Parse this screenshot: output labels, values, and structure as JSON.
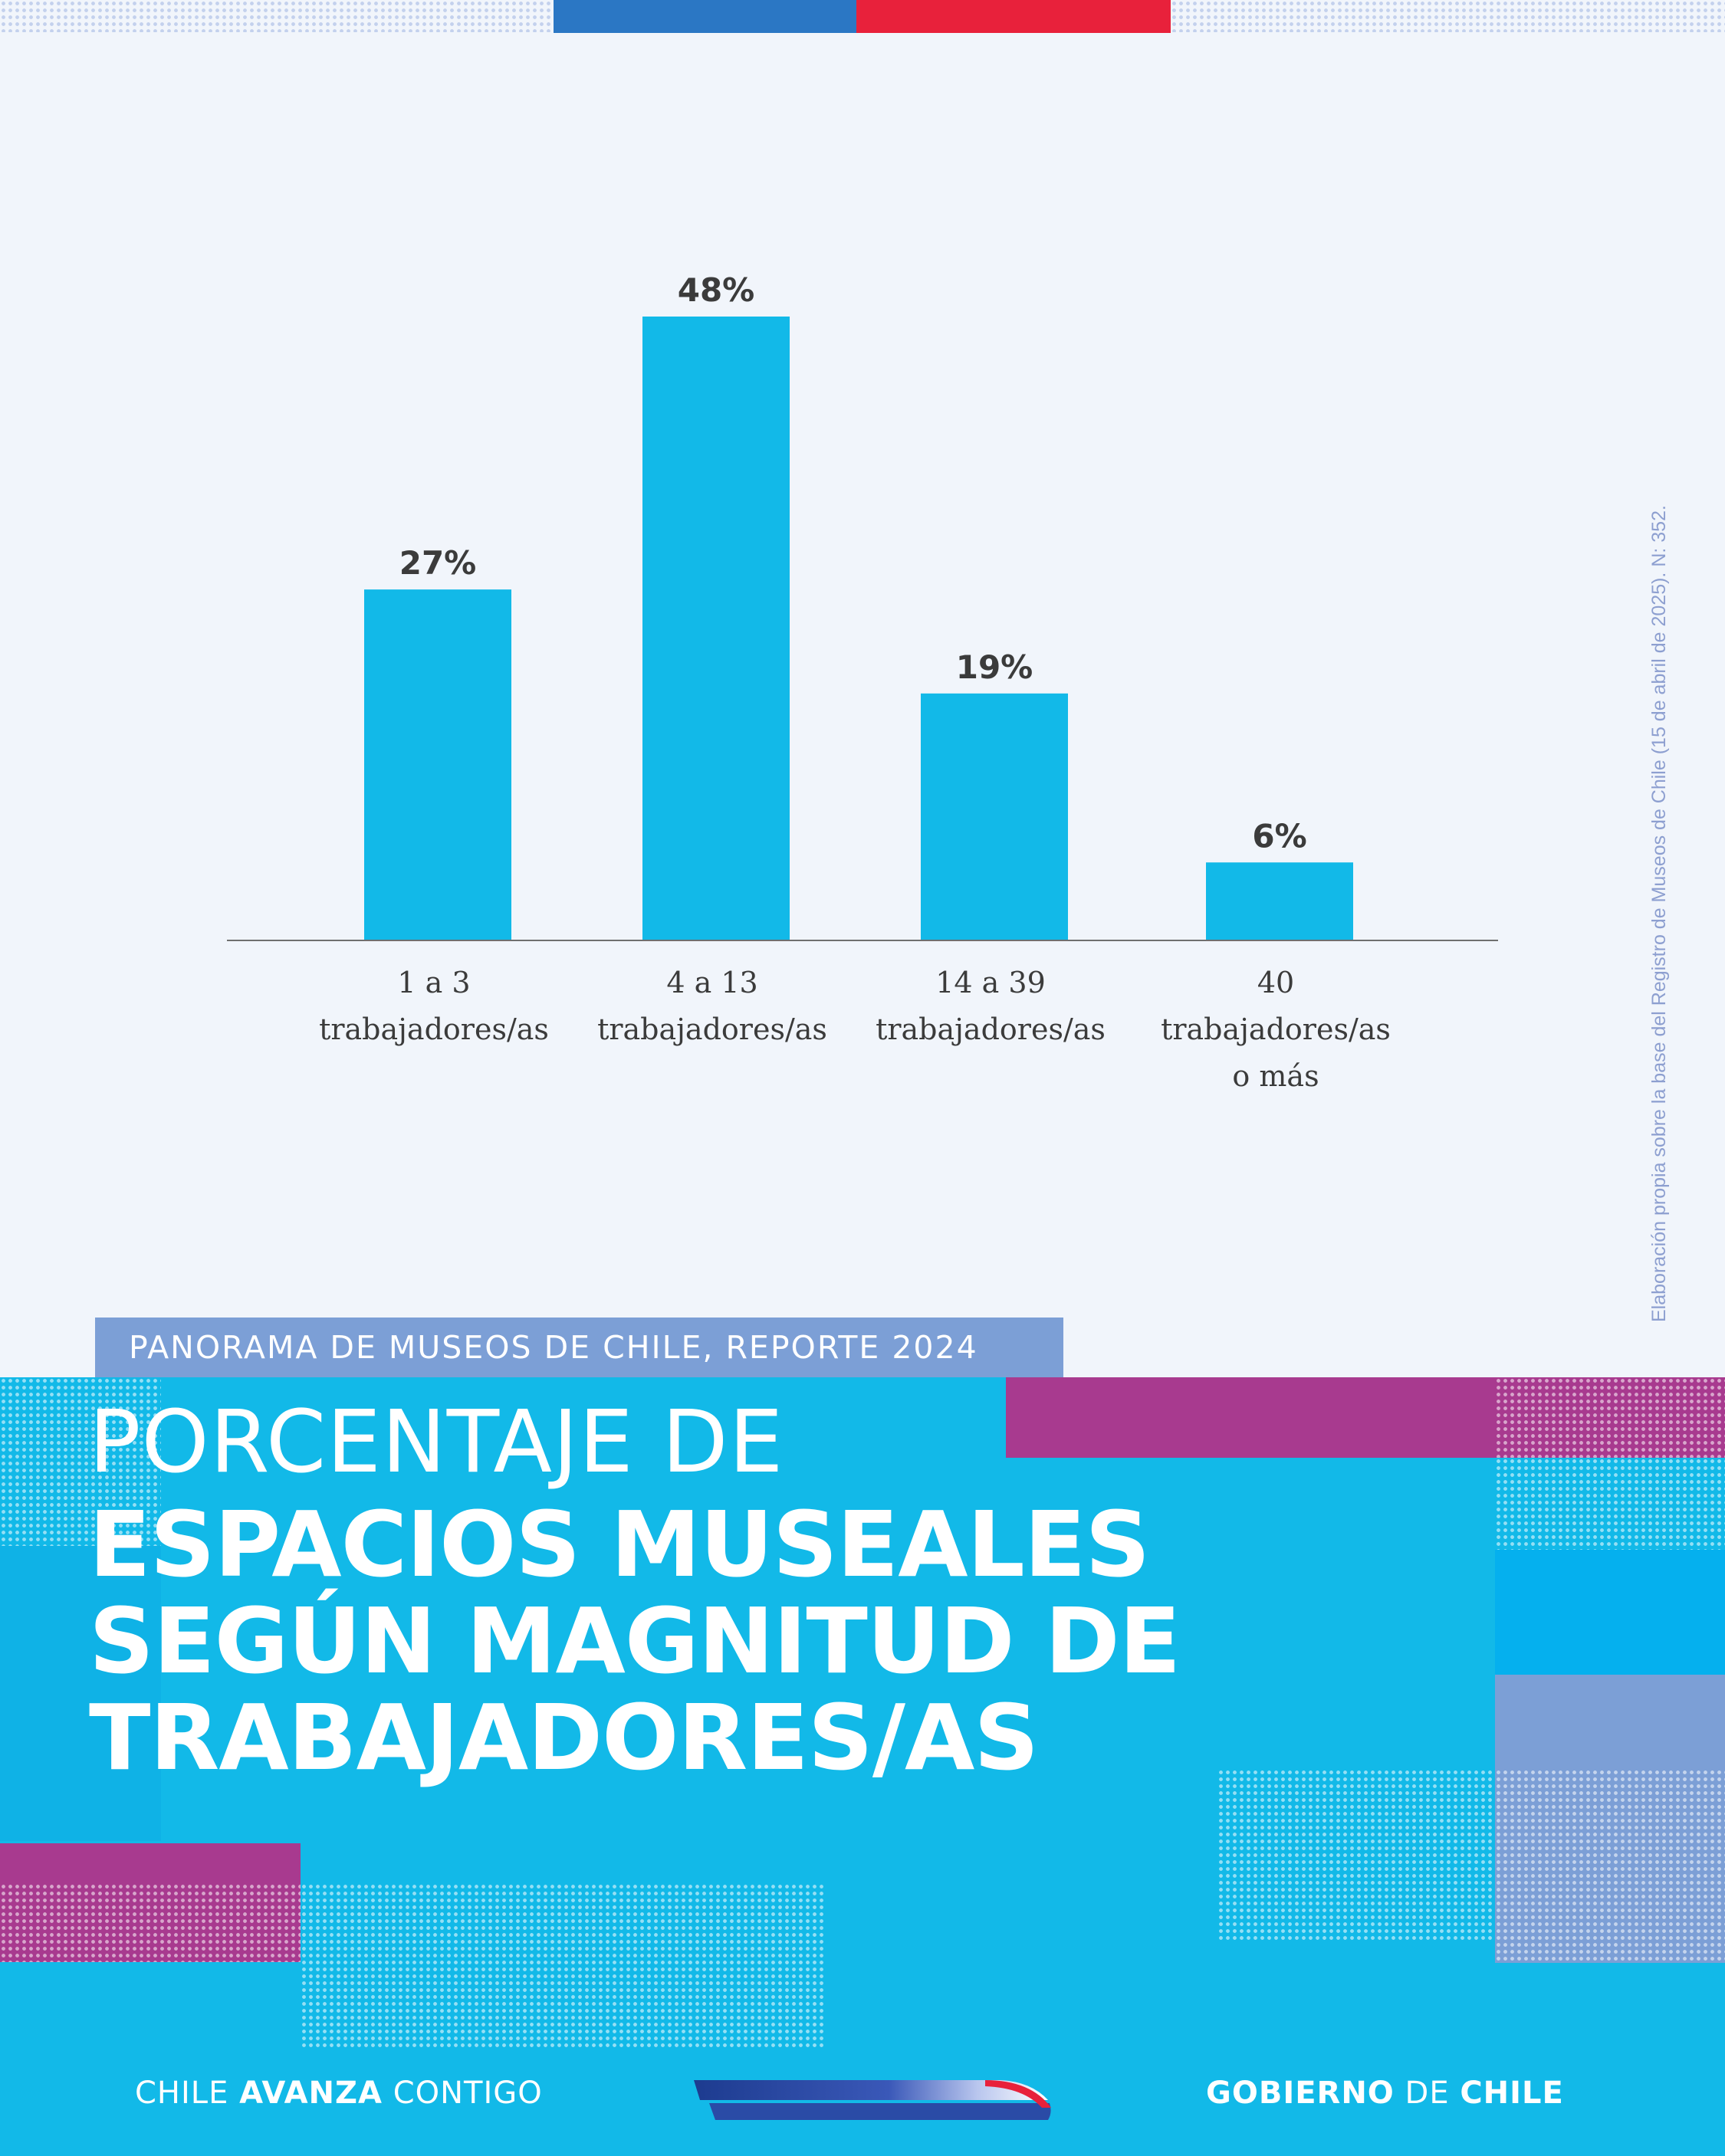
{
  "colors": {
    "background": "#f1f5fb",
    "bar": "#12b9e8",
    "flag_blue": "#2b77c4",
    "flag_red": "#e8213b",
    "title_band": "#12b9e8",
    "magenta": "#a83a8f",
    "periwinkle": "#7c9fd6",
    "text_dark": "#3b3b3b"
  },
  "chart_data": {
    "type": "bar",
    "categories": [
      [
        "1 a 3",
        "trabajadores/as"
      ],
      [
        "4 a 13",
        "trabajadores/as"
      ],
      [
        "14 a 39",
        "trabajadores/as"
      ],
      [
        "40",
        "trabajadores/as",
        "o más"
      ]
    ],
    "values": [
      27,
      48,
      19,
      6
    ],
    "value_labels": [
      "27%",
      "48%",
      "19%",
      "6%"
    ],
    "unit": "%",
    "ylim": [
      0,
      48
    ],
    "grid": false,
    "legend": "none"
  },
  "source_note": "Elaboración propia sobre la base del Registro de Museos de Chile (15 de abril de 2025). N: 352.",
  "report_tag": "PANORAMA DE MUSEOS DE CHILE, REPORTE 2024",
  "title": {
    "line1": "PORCENTAJE DE",
    "line2": "ESPACIOS MUSEALES",
    "line3": "SEGÚN MAGNITUD DE",
    "line4": "TRABAJADORES/AS"
  },
  "footer": {
    "left_a": "CHILE",
    "left_b": "AVANZA",
    "left_c": "CONTIGO",
    "right_a": "GOBIERNO",
    "right_b": "DE",
    "right_c": "CHILE"
  }
}
